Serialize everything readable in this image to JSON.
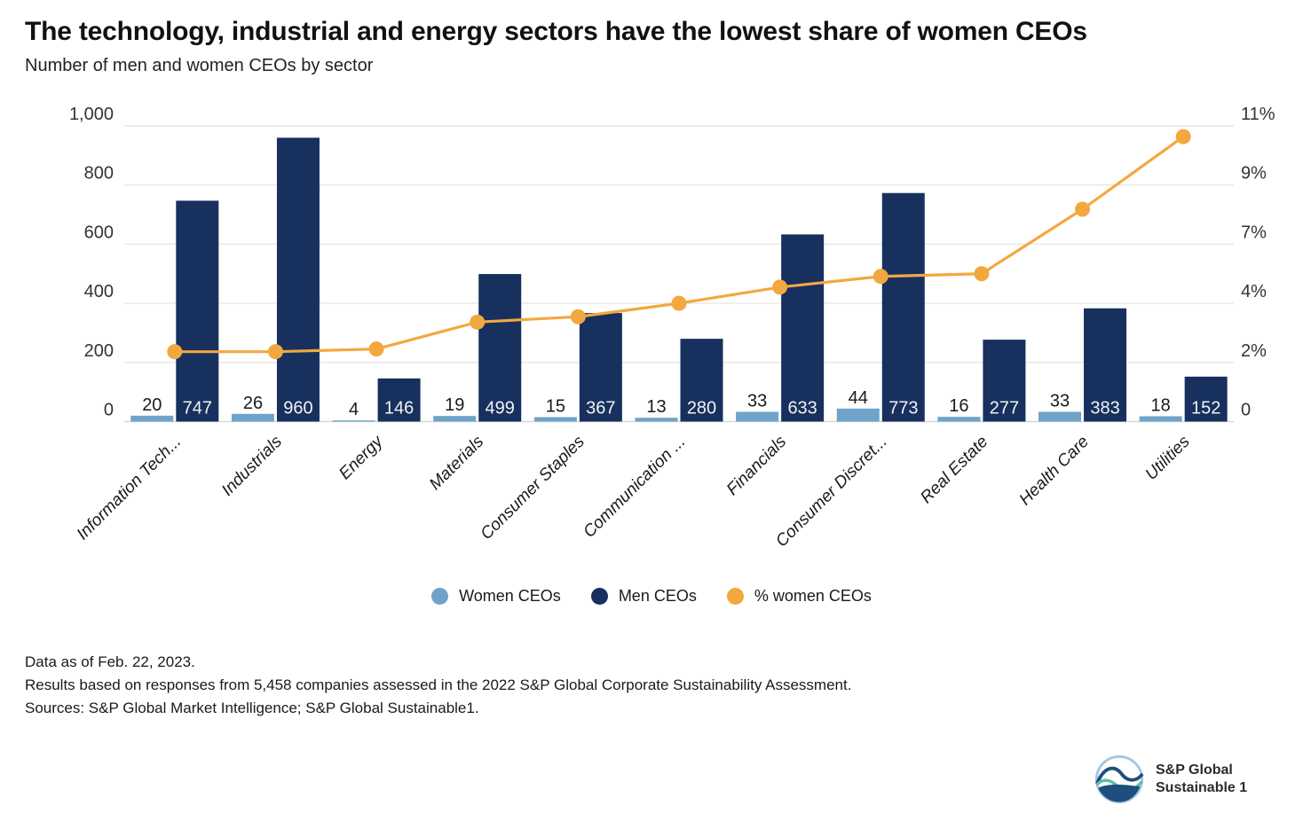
{
  "header": {
    "title": "The technology, industrial and energy sectors have the lowest share of women CEOs",
    "subtitle": "Number of men and women CEOs by sector"
  },
  "chart_data": {
    "type": "bar",
    "subtype": "grouped bars with overlaid percentage line (dual axis)",
    "categories": [
      "Information Tech...",
      "Industrials",
      "Energy",
      "Materials",
      "Consumer Staples",
      "Communication ...",
      "Financials",
      "Consumer Discret...",
      "Real Estate",
      "Health Care",
      "Utilities"
    ],
    "series": [
      {
        "name": "Women CEOs",
        "type": "bar",
        "axis": "left",
        "values": [
          20,
          26,
          4,
          19,
          15,
          13,
          33,
          44,
          16,
          33,
          18
        ]
      },
      {
        "name": "Men CEOs",
        "type": "bar",
        "axis": "left",
        "values": [
          747,
          960,
          146,
          499,
          367,
          280,
          633,
          773,
          277,
          383,
          152
        ]
      },
      {
        "name": "% women CEOs",
        "type": "line",
        "axis": "right",
        "values": [
          2.6,
          2.6,
          2.7,
          3.7,
          3.9,
          4.4,
          5.0,
          5.4,
          5.5,
          7.9,
          10.6
        ]
      }
    ],
    "left_axis": {
      "min": 0,
      "max": 1000,
      "tick_values": [
        0,
        200,
        400,
        600,
        800,
        1000
      ],
      "tick_labels": [
        "0",
        "200",
        "400",
        "600",
        "800",
        "1,000"
      ]
    },
    "right_axis": {
      "min": 0,
      "max": 11,
      "tick_labels": [
        "0",
        "2%",
        "4%",
        "7%",
        "9%",
        "11%"
      ]
    },
    "grid": true,
    "legend_position": "bottom",
    "colors": {
      "women": "#6FA3C9",
      "men": "#17305E",
      "pct_line": "#F2A83F",
      "gridline": "#E6E6E6",
      "axis_line": "#D8D8D8",
      "tick_text": "#333333",
      "bar_label_dark": "#1a1a1a",
      "bar_label_light": "#F2F2F2"
    }
  },
  "legend": {
    "items": [
      {
        "label": "Women CEOs",
        "color": "#6FA3C9"
      },
      {
        "label": "Men CEOs",
        "color": "#17305E"
      },
      {
        "label": "% women CEOs",
        "color": "#F2A83F"
      }
    ]
  },
  "footnotes": {
    "line1": "Data as of Feb. 22, 2023.",
    "line2": "Results based on responses from 5,458 companies assessed in the 2022 S&P Global Corporate Sustainability Assessment.",
    "line3": "Sources: S&P Global Market Intelligence; S&P Global Sustainable1."
  },
  "logo": {
    "line1": "S&P Global",
    "line2": "Sustainable 1"
  }
}
